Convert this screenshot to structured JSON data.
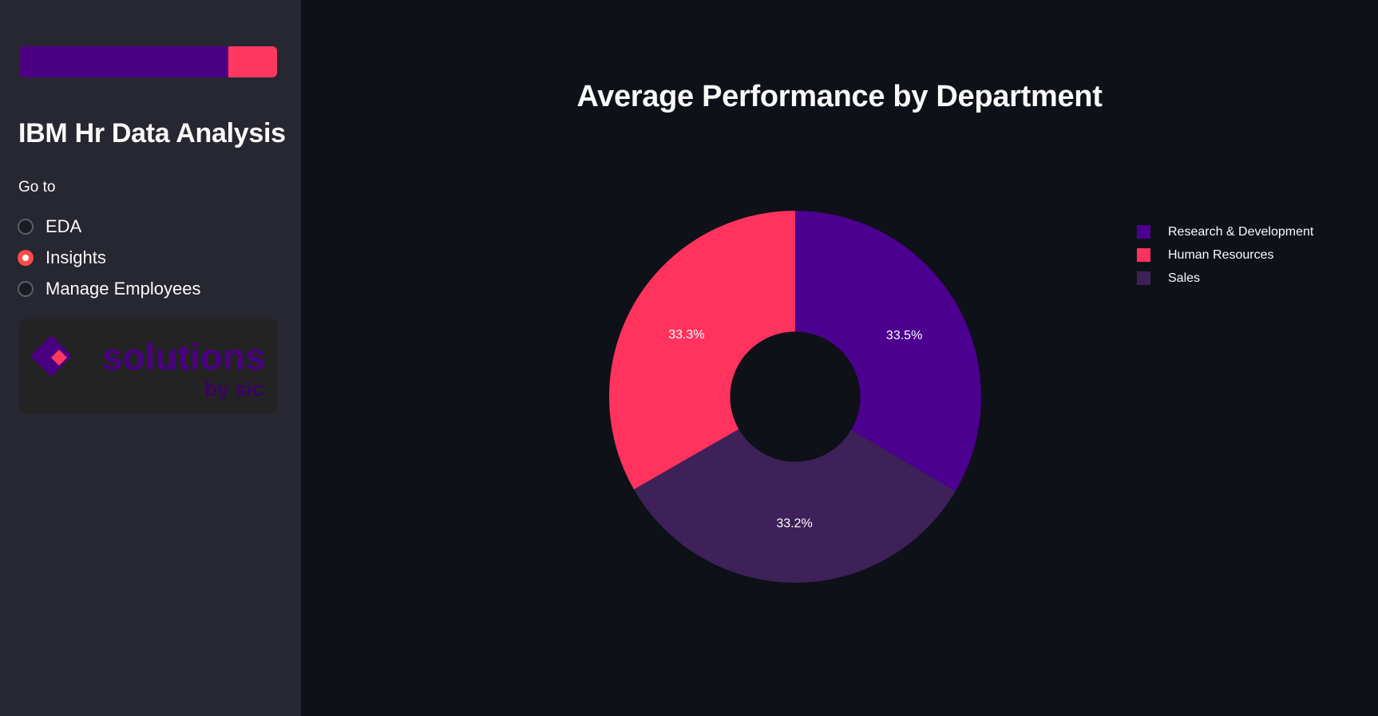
{
  "sidebar": {
    "progress": {
      "value_percent": 81,
      "fill_color": "#4b0082",
      "track_color": "#ff3860"
    },
    "title": "IBM Hr Data Analysis",
    "nav_label": "Go to",
    "nav_options": [
      {
        "label": "EDA",
        "selected": false
      },
      {
        "label": "Insights",
        "selected": true
      },
      {
        "label": "Manage Employees",
        "selected": false
      }
    ],
    "logo": {
      "word": "solutions",
      "tagline": "by sic",
      "icon": "diamond-logo-icon"
    }
  },
  "main": {
    "chart_title": "Average Performance by Department"
  },
  "chart_data": {
    "type": "pie",
    "hole": 0.35,
    "title": "Average Performance by Department",
    "legend_position": "top-right",
    "slices": [
      {
        "name": "Research & Development",
        "value": 33.5,
        "label": "33.5%",
        "color": "#4b0090"
      },
      {
        "name": "Sales",
        "value": 33.2,
        "label": "33.2%",
        "color": "#3e2158"
      },
      {
        "name": "Human Resources",
        "value": 33.3,
        "label": "33.3%",
        "color": "#ff335e"
      }
    ],
    "legend": [
      {
        "name": "Research & Development",
        "color": "#4b0090"
      },
      {
        "name": "Human Resources",
        "color": "#ff335e"
      },
      {
        "name": "Sales",
        "color": "#3e2158"
      }
    ]
  }
}
